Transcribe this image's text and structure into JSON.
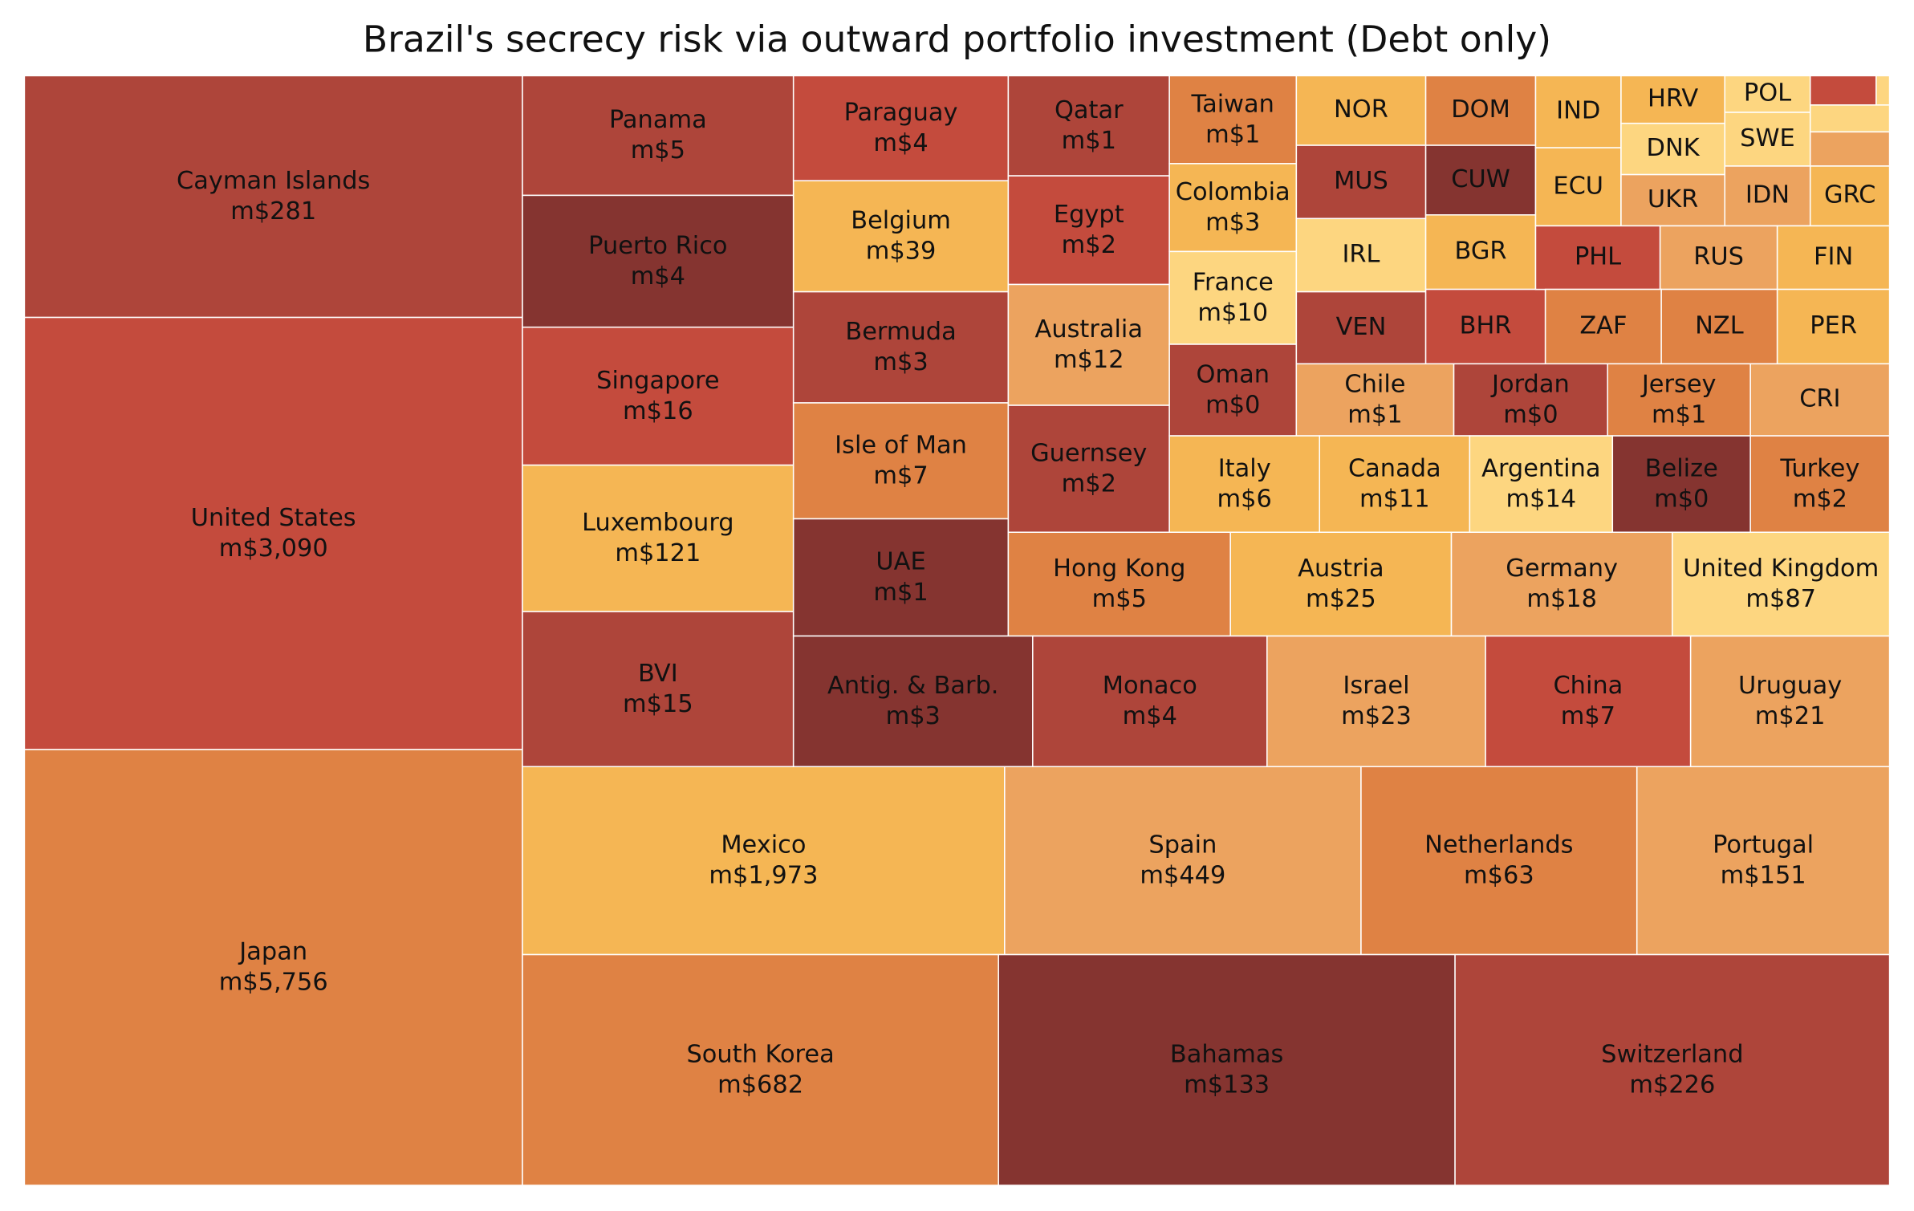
{
  "chart_data": {
    "type": "treemap",
    "title": "Brazil's secrecy risk via outward portfolio investment (Debt only)",
    "categories": [
      "Cayman Islands",
      "United States",
      "Japan",
      "Panama",
      "Puerto Rico",
      "Singapore",
      "Luxembourg",
      "BVI",
      "Paraguay",
      "Belgium",
      "Bermuda",
      "Isle of Man",
      "UAE",
      "Qatar",
      "Egypt",
      "Australia",
      "Guernsey",
      "Taiwan",
      "Colombia",
      "France",
      "Oman",
      "NOR",
      "MUS",
      "IRL",
      "VEN",
      "DOM",
      "CUW",
      "BGR",
      "BHR",
      "IND",
      "ECU",
      "HRV",
      "DNK",
      "UKR",
      "POL",
      "SWE",
      "IDN",
      null,
      null,
      null,
      null,
      "GRC",
      "PHL",
      "RUS",
      "FIN",
      "ZAF",
      "NZL",
      "PER",
      "Chile",
      "Jordan",
      "Jersey",
      "CRI",
      "Italy",
      "Canada",
      "Argentina",
      "Belize",
      "Turkey",
      "Hong Kong",
      "Austria",
      "Germany",
      "United Kingdom",
      "Antig. & Barb.",
      "Monaco",
      "Israel",
      "China",
      "Uruguay",
      "Mexico",
      "Spain",
      "Netherlands",
      "Portugal",
      "South Korea",
      "Bahamas",
      "Switzerland"
    ],
    "values": [
      281,
      3090,
      5756,
      5,
      4,
      16,
      121,
      15,
      4,
      39,
      3,
      7,
      1,
      1,
      2,
      12,
      2,
      1,
      3,
      10,
      0,
      null,
      null,
      null,
      null,
      null,
      null,
      null,
      null,
      null,
      null,
      null,
      null,
      null,
      null,
      null,
      null,
      null,
      null,
      null,
      null,
      null,
      null,
      null,
      null,
      null,
      null,
      null,
      1,
      0,
      1,
      null,
      6,
      11,
      14,
      0,
      2,
      5,
      25,
      18,
      87,
      3,
      4,
      23,
      7,
      21,
      1973,
      449,
      63,
      151,
      682,
      133,
      226
    ],
    "value_labels": [
      "m$281",
      "m$3,090",
      "m$5,756",
      "m$5",
      "m$4",
      "m$16",
      "m$121",
      "m$15",
      "m$4",
      "m$39",
      "m$3",
      "m$7",
      "m$1",
      "m$1",
      "m$2",
      "m$12",
      "m$2",
      "m$1",
      "m$3",
      "m$10",
      "m$0",
      null,
      null,
      null,
      null,
      null,
      null,
      null,
      null,
      null,
      null,
      null,
      null,
      null,
      null,
      null,
      null,
      null,
      null,
      null,
      null,
      null,
      null,
      null,
      null,
      null,
      null,
      null,
      "m$1",
      "m$0",
      "m$1",
      null,
      "m$6",
      "m$11",
      "m$14",
      "m$0",
      "m$2",
      "m$5",
      "m$25",
      "m$18",
      "m$87",
      "m$3",
      "m$4",
      "m$23",
      "m$7",
      "m$21",
      "m$1,973",
      "m$449",
      "m$63",
      "m$151",
      "m$682",
      "m$133",
      "m$226"
    ],
    "colors": [
      "#ae453a",
      "#c44b3d",
      "#df8244",
      "#ae453a",
      "#853430",
      "#c44b3d",
      "#f5b654",
      "#ae453a",
      "#c44b3d",
      "#f5b654",
      "#ae453a",
      "#df8244",
      "#853430",
      "#ae453a",
      "#c44b3d",
      "#eca35f",
      "#ae453a",
      "#df8244",
      "#f5b654",
      "#fdd680",
      "#ae453a",
      "#f5b654",
      "#ae453a",
      "#fdd680",
      "#ae453a",
      "#df8244",
      "#853430",
      "#f5b654",
      "#c44b3d",
      "#f5b654",
      "#f5b654",
      "#f5b654",
      "#fdd680",
      "#eca35f",
      "#fdd680",
      "#fdd680",
      "#eca35f",
      "#c44b3d",
      "#fdd680",
      "#fdd680",
      "#eca35f",
      "#f5b654",
      "#c44b3d",
      "#eca35f",
      "#f5b654",
      "#df8244",
      "#df8244",
      "#f5b654",
      "#eca35f",
      "#ae453a",
      "#df8244",
      "#eca35f",
      "#f5b654",
      "#f5b654",
      "#fdd680",
      "#853430",
      "#df8244",
      "#df8244",
      "#f5b654",
      "#eca35f",
      "#fdd680",
      "#853430",
      "#ae453a",
      "#eca35f",
      "#c44b3d",
      "#eca35f",
      "#f5b654",
      "#eca35f",
      "#df8244",
      "#eca35f",
      "#df8244",
      "#853430",
      "#ae453a"
    ]
  }
}
